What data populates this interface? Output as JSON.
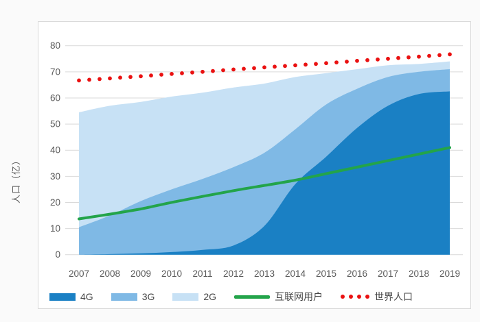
{
  "chart_data": {
    "type": "area",
    "stacked": true,
    "categories": [
      "2007",
      "2008",
      "2009",
      "2010",
      "2011",
      "2012",
      "2013",
      "2014",
      "2015",
      "2016",
      "2017",
      "2018",
      "2019"
    ],
    "xlabel": "",
    "ylabel": "人口（亿）",
    "ylim": [
      0,
      80
    ],
    "yticks": [
      0,
      10,
      20,
      30,
      40,
      50,
      60,
      70,
      80
    ],
    "grid": "horizontal",
    "legend_position": "bottom",
    "series": [
      {
        "name": "4G",
        "type": "area",
        "color": "#1A80C4",
        "values": [
          0,
          0.2,
          0.5,
          1,
          1.8,
          3.5,
          11,
          27,
          37.5,
          48.5,
          57,
          61.5,
          62.5
        ],
        "cumulative_top": [
          0,
          0.2,
          0.5,
          1,
          1.8,
          3.5,
          11,
          27,
          37.5,
          48.5,
          57,
          61.5,
          62.5
        ]
      },
      {
        "name": "3G",
        "type": "area",
        "color": "#7FB9E5",
        "values": [
          10.5,
          14.8,
          20,
          24,
          27.2,
          30,
          28,
          21,
          20,
          15,
          11,
          8.5,
          8.5
        ],
        "cumulative_top": [
          10.5,
          15,
          20.5,
          25,
          29,
          33.5,
          39,
          48,
          57.5,
          63.5,
          68,
          70,
          71
        ]
      },
      {
        "name": "2G",
        "type": "area",
        "color": "#C7E1F5",
        "values": [
          44,
          42,
          38,
          35.5,
          33,
          30.5,
          26.5,
          20,
          12,
          7.5,
          4.5,
          3,
          3
        ],
        "cumulative_top": [
          54.5,
          57,
          58.5,
          60.5,
          62,
          64,
          65.5,
          68,
          69.5,
          71,
          72.5,
          73,
          74
        ]
      },
      {
        "name": "互联网用户",
        "type": "line",
        "color": "#23A44A",
        "values": [
          13.7,
          15.5,
          17.5,
          20,
          22.3,
          24.5,
          26.5,
          28.5,
          31,
          33.5,
          36,
          38.5,
          41
        ]
      },
      {
        "name": "世界人口",
        "type": "dotted-line",
        "color": "#EA1111",
        "values": [
          66.7,
          67.5,
          68.3,
          69.2,
          70,
          70.9,
          71.7,
          72.5,
          73.3,
          74.2,
          75,
          75.8,
          76.7
        ]
      }
    ]
  },
  "colors": {
    "grid": "#D9D9D9",
    "axis_text": "#595959",
    "legend_text": "#454545",
    "panel_border": "#D9D9D9",
    "panel_bg": "#FFFFFF",
    "page_bg": "#FAFAFA"
  }
}
